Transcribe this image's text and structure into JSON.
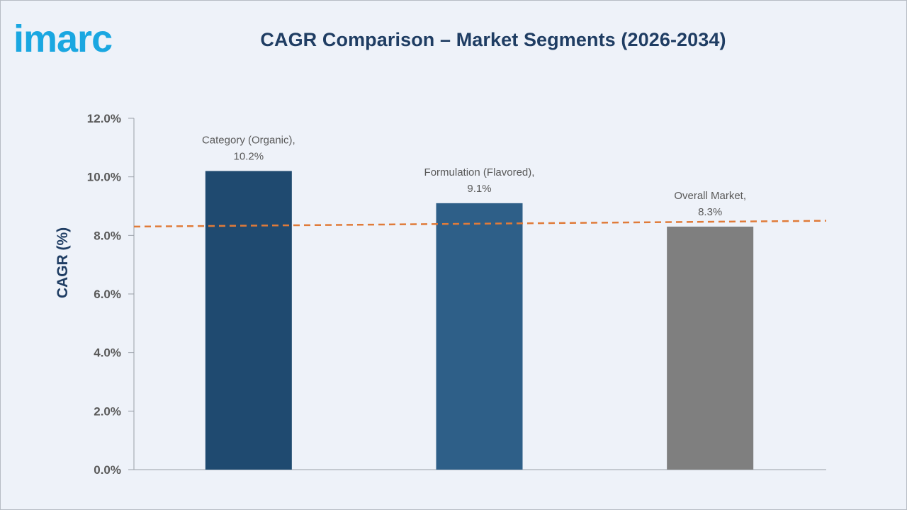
{
  "brand": {
    "logo_text": "imarc",
    "color": "#1aa7e1"
  },
  "chart_data": {
    "type": "bar",
    "title": "CAGR Comparison – Market Segments (2026-2034)",
    "xlabel": "",
    "ylabel": "CAGR (%)",
    "ylim": [
      0,
      12
    ],
    "yticks": [
      "0.0%",
      "2.0%",
      "4.0%",
      "6.0%",
      "8.0%",
      "10.0%",
      "12.0%"
    ],
    "ytick_values": [
      0,
      2,
      4,
      6,
      8,
      10,
      12
    ],
    "categories": [
      "Category (Organic)",
      "Formulation (Flavored)",
      "Overall Market"
    ],
    "values": [
      10.2,
      9.1,
      8.3
    ],
    "data_labels": [
      [
        "Category (Organic),",
        "10.2%"
      ],
      [
        "Formulation (Flavored),",
        "9.1%"
      ],
      [
        "Overall Market,",
        "8.3%"
      ]
    ],
    "bar_colors": [
      "#1f4a70",
      "#2e5f88",
      "#7f7f7f"
    ],
    "trendline": {
      "style": "dashed",
      "color": "#e07b39",
      "start_value": 8.3,
      "end_value": 8.5
    },
    "grid": false,
    "legend": "none"
  }
}
